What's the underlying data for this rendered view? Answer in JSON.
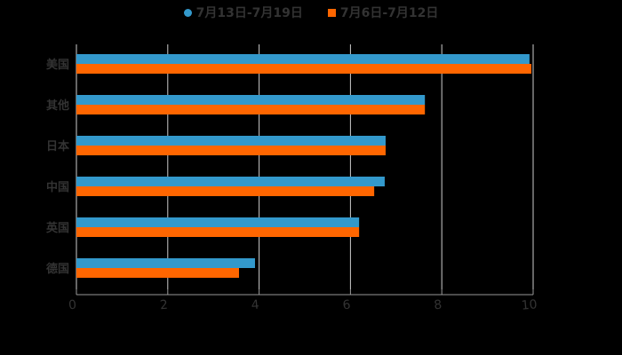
{
  "chart_data": {
    "type": "bar",
    "orientation": "horizontal",
    "title": "",
    "categories": [
      "美国",
      "其他",
      "日本",
      "中国",
      "英国",
      "德国"
    ],
    "series": [
      {
        "name": "7月13日-7月19日",
        "color": "#3399cc",
        "values": [
          9.92,
          7.63,
          6.77,
          6.75,
          6.19,
          3.91
        ]
      },
      {
        "name": "7月6日-7月12日",
        "color": "#ff6600",
        "values": [
          9.96,
          7.63,
          6.77,
          6.52,
          6.19,
          3.56
        ]
      }
    ],
    "xlim": [
      0,
      10
    ],
    "xticks": [
      "0",
      "2",
      "4",
      "6",
      "8",
      "10"
    ],
    "xlabel": "",
    "ylabel": "",
    "grid": "vertical",
    "legend_position": "top"
  },
  "legend": {
    "items": [
      {
        "label": "7月13日-7月19日",
        "color": "#3399cc",
        "shape": "circle"
      },
      {
        "label": "7月6日-7月12日",
        "color": "#ff6600",
        "shape": "square"
      }
    ]
  },
  "colors": {
    "background": "#000000",
    "text": "#333333",
    "grid": "#cccccc"
  }
}
